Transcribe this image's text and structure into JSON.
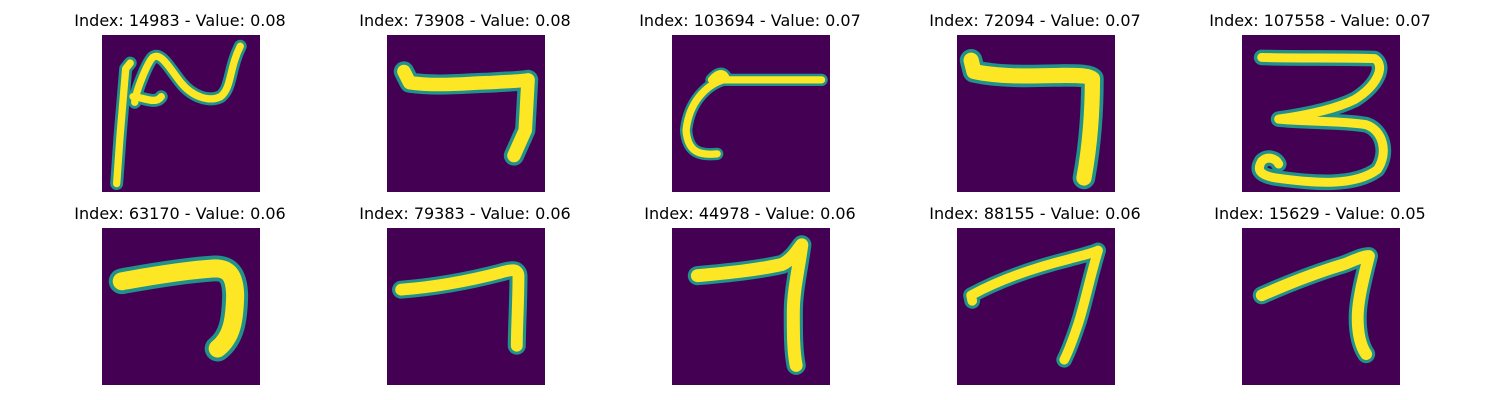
{
  "colors": {
    "background": "#440154",
    "low": "#3b528b",
    "mid": "#21918c",
    "high": "#fde725"
  },
  "panels": [
    {
      "title": "Index: 14983 - Value: 0.08",
      "image": "digit-image-swirl"
    },
    {
      "title": "Index: 73908 - Value: 0.08",
      "image": "digit-image-seven"
    },
    {
      "title": "Index: 103694 - Value: 0.07",
      "image": "digit-image-curl"
    },
    {
      "title": "Index: 72094 - Value: 0.07",
      "image": "digit-image-seven"
    },
    {
      "title": "Index: 107558 - Value: 0.07",
      "image": "digit-image-three"
    },
    {
      "title": "Index: 63170 - Value: 0.06",
      "image": "digit-image-seven"
    },
    {
      "title": "Index: 79383 - Value: 0.06",
      "image": "digit-image-seven"
    },
    {
      "title": "Index: 44978 - Value: 0.06",
      "image": "digit-image-seven"
    },
    {
      "title": "Index: 88155 - Value: 0.06",
      "image": "digit-image-seven"
    },
    {
      "title": "Index: 15629 - Value: 0.05",
      "image": "digit-image-seven"
    }
  ]
}
